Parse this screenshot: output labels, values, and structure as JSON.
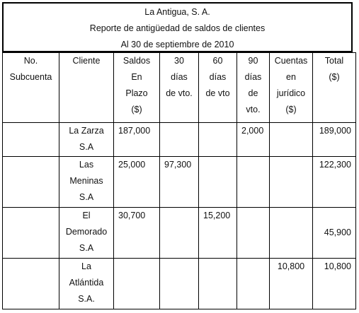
{
  "report": {
    "company": "La Antigua, S. A.",
    "title": "Reporte  de antigüedad de saldos de clientes",
    "date_line": "Al  30 de septiembre de 2010"
  },
  "table": {
    "headers": {
      "subaccount": [
        "No.",
        "Subcuenta"
      ],
      "client": [
        "Cliente"
      ],
      "balance_on_term": [
        "Saldos",
        "En",
        "Plazo",
        "($)"
      ],
      "days30": [
        "30",
        "días",
        "de vto."
      ],
      "days60": [
        "60",
        "días",
        "de vto"
      ],
      "days90": [
        "90",
        "días",
        "de",
        "vto."
      ],
      "legal": [
        "Cuentas",
        "en",
        "jurídico",
        "($)"
      ],
      "total": [
        "Total",
        "($)"
      ]
    },
    "rows": [
      {
        "subaccount": "",
        "client": [
          "La  Zarza",
          "S.A"
        ],
        "balance_on_term": "187,000",
        "days30": "",
        "days60": "",
        "days90": "2,000",
        "legal": "",
        "total": "189,000"
      },
      {
        "subaccount": "",
        "client": [
          "Las",
          "Meninas",
          "S.A"
        ],
        "balance_on_term": "25,000",
        "days30": "97,300",
        "days60": "",
        "days90": "",
        "legal": "",
        "total": "122,300"
      },
      {
        "subaccount": "",
        "client": [
          "El",
          "Demorado",
          "S.A"
        ],
        "balance_on_term": "30,700",
        "days30": "",
        "days60": "15,200",
        "days90": "",
        "legal": "",
        "total": "45,900"
      },
      {
        "subaccount": "",
        "client": [
          "La",
          "Atlántida",
          "S.A."
        ],
        "balance_on_term": "",
        "days30": "",
        "days60": "",
        "days90": "",
        "legal": "10,800",
        "total": "10,800"
      }
    ]
  }
}
